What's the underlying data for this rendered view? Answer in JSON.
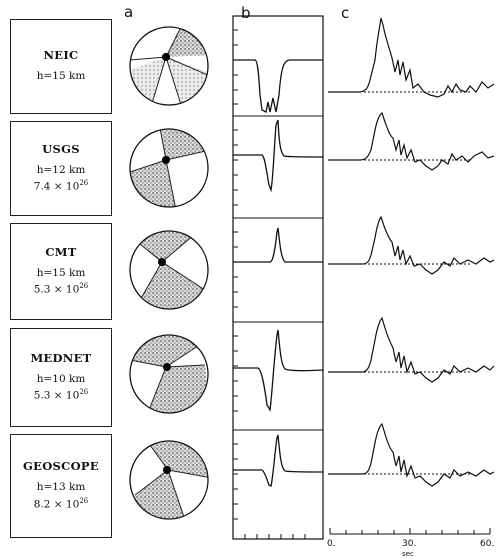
{
  "panel_labels": {
    "a": "a",
    "b": "b",
    "c": "c"
  },
  "solutions": [
    {
      "agency": "NEIC",
      "depth": "h=15 km",
      "moment_mantissa": "",
      "moment_exp": ""
    },
    {
      "agency": "USGS",
      "depth": "h=12 km",
      "moment_mantissa": "7.4 × 10",
      "moment_exp": "26"
    },
    {
      "agency": "CMT",
      "depth": "h=15 km",
      "moment_mantissa": "5.3 × 10",
      "moment_exp": "26"
    },
    {
      "agency": "MEDNET",
      "depth": "h=10 km",
      "moment_mantissa": "5.3 × 10",
      "moment_exp": "26"
    },
    {
      "agency": "GEOSCOPE",
      "depth": "h=13 km",
      "moment_mantissa": "8.2 × 10",
      "moment_exp": "26"
    }
  ],
  "time_axis": {
    "ticks": [
      "0.",
      "30.",
      "60."
    ],
    "unit": "sec"
  }
}
